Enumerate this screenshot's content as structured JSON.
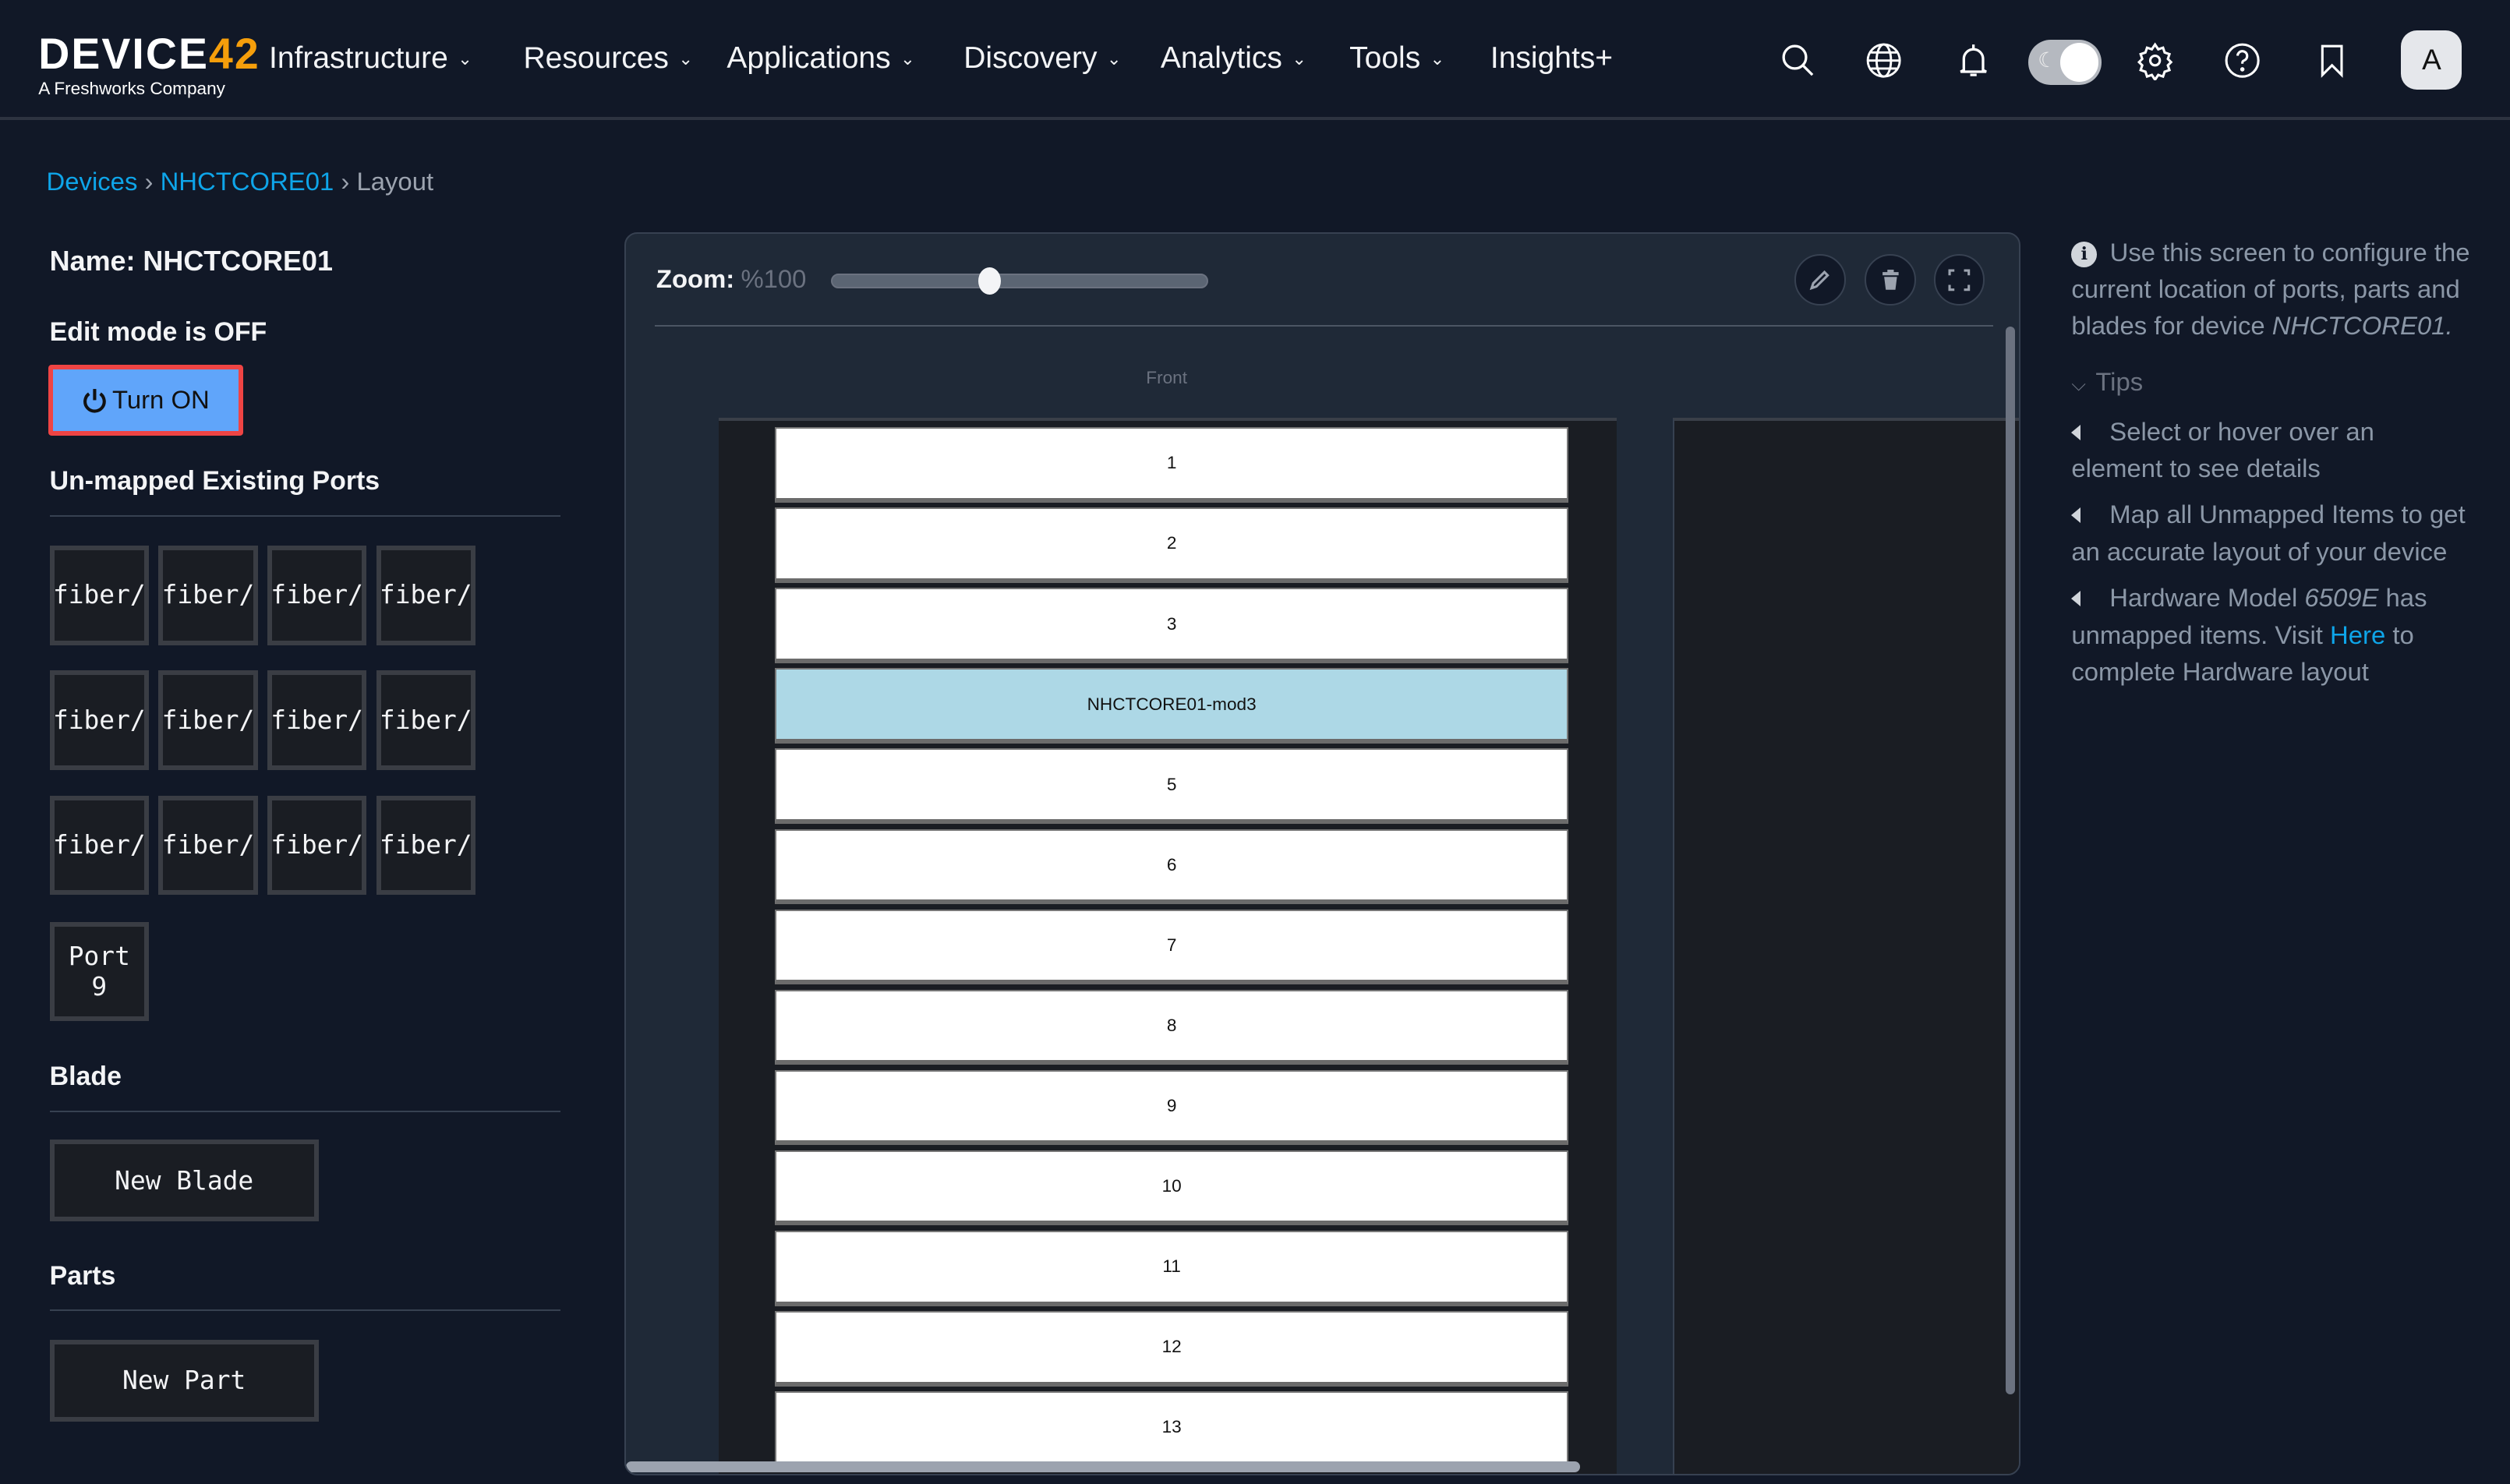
{
  "brand": {
    "logo_main": "DEVICE",
    "logo_accent": "42",
    "logo_sub": "A Freshworks Company"
  },
  "nav": {
    "items": [
      {
        "label": "Infrastructure",
        "dropdown": true
      },
      {
        "label": "Resources",
        "dropdown": true
      },
      {
        "label": "Applications",
        "dropdown": true
      },
      {
        "label": "Discovery",
        "dropdown": true
      },
      {
        "label": "Analytics",
        "dropdown": true
      },
      {
        "label": "Tools",
        "dropdown": true
      },
      {
        "label": "Insights+",
        "dropdown": false
      }
    ],
    "icons": [
      "search-icon",
      "globe-icon",
      "bell-icon",
      "theme-toggle",
      "gear-icon",
      "help-icon",
      "bookmark-icon"
    ],
    "avatar": "A"
  },
  "breadcrumb": {
    "items": [
      "Devices",
      "NHCTCORE01"
    ],
    "current": "Layout",
    "sep": "›"
  },
  "left": {
    "name_label": "Name: NHCTCORE01",
    "edit_mode": "Edit mode is OFF",
    "turn_on": "Turn ON",
    "unmapped_heading": "Un-mapped Existing Ports",
    "ports": [
      "fiber/",
      "fiber/",
      "fiber/",
      "fiber/",
      "fiber/",
      "fiber/",
      "fiber/",
      "fiber/",
      "fiber/",
      "fiber/",
      "fiber/",
      "fiber/",
      "Port 9"
    ],
    "blade_heading": "Blade",
    "new_blade": "New Blade",
    "parts_heading": "Parts",
    "new_part": "New Part"
  },
  "layout": {
    "zoom_label": "Zoom:",
    "zoom_value": "%100",
    "zoom_percent": 100,
    "zoom_slider_fraction": 0.42,
    "front_label": "Front",
    "slots": [
      "1",
      "2",
      "3",
      "NHCTCORE01-mod3",
      "5",
      "6",
      "7",
      "8",
      "9",
      "10",
      "11",
      "12",
      "13"
    ],
    "highlight_slot": "NHCTCORE01-mod3",
    "highlight_color": "#add8e6"
  },
  "info": {
    "intro": "Use this screen to configure the current location of ports, parts and blades for device",
    "device": "NHCTCORE01.",
    "tips_label": "Tips",
    "tip1": "Select or hover over an element to see details",
    "tip2": "Map all Unmapped Items to get an accurate layout of your device",
    "tip3_a": "Hardware Model",
    "tip3_model": "6509E",
    "tip3_b": "has unmapped items. Visit",
    "tip3_link": "Here",
    "tip3_c": "to complete Hardware layout"
  }
}
